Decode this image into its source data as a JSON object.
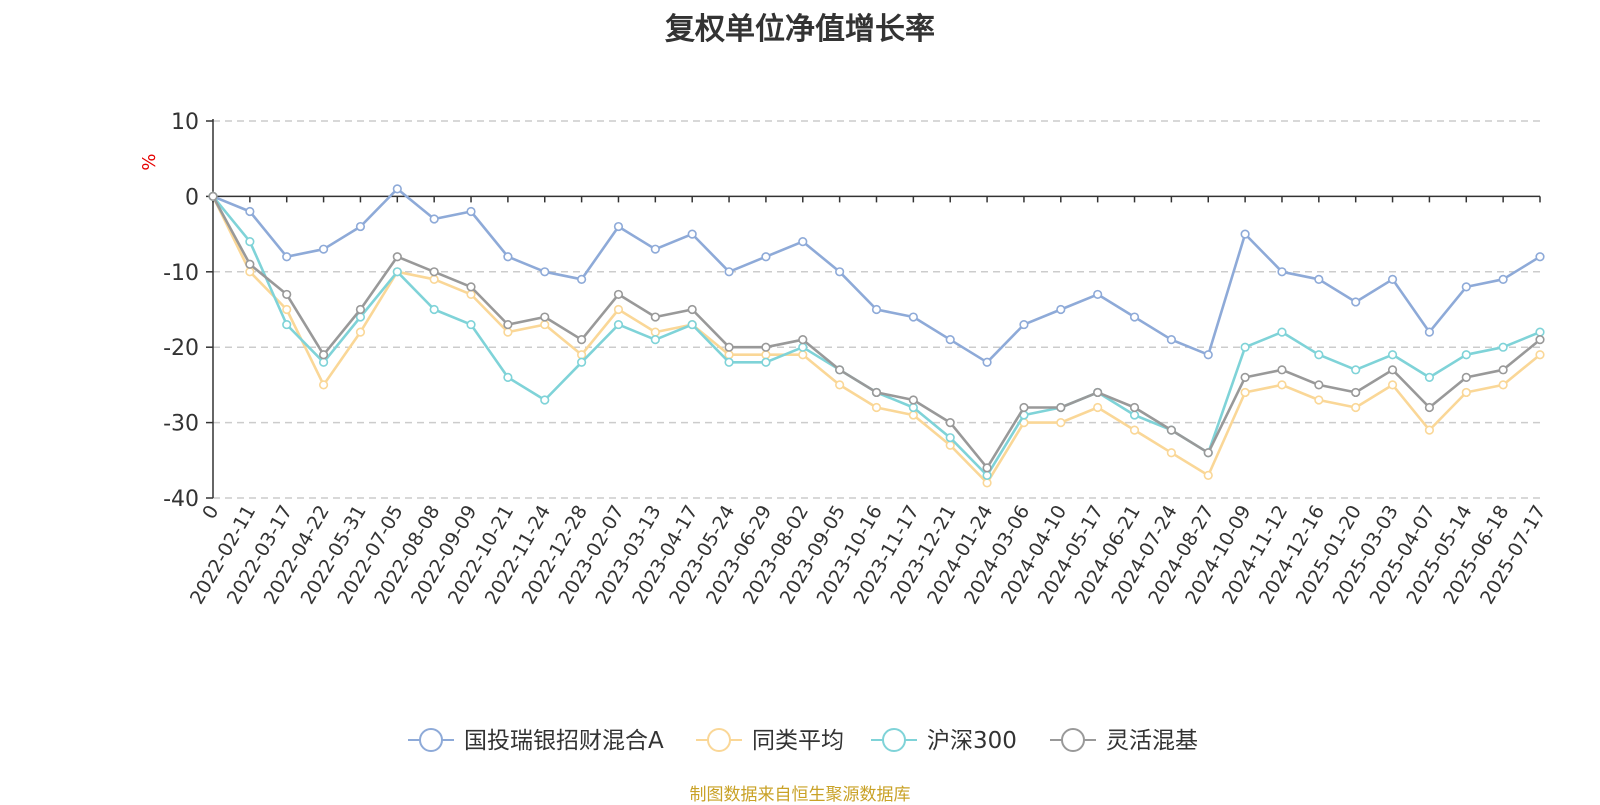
{
  "title": "复权单位净值增长率",
  "source": "制图数据来自恒生聚源数据库",
  "chart_data": {
    "type": "line",
    "title": "复权单位净值增长率",
    "ylabel": "%",
    "ylim": [
      -40,
      10
    ],
    "yticks": [
      10,
      0,
      -10,
      -20,
      -30,
      -40
    ],
    "grid": true,
    "legend_position": "bottom",
    "x_tick_labels": [
      "0",
      "2022-02-11",
      "2022-03-17",
      "2022-04-22",
      "2022-05-31",
      "2022-07-05",
      "2022-08-08",
      "2022-09-09",
      "2022-10-21",
      "2022-11-24",
      "2022-12-28",
      "2023-02-07",
      "2023-03-13",
      "2023-04-17",
      "2023-05-24",
      "2023-06-29",
      "2023-08-02",
      "2023-09-05",
      "2023-10-16",
      "2023-11-17",
      "2023-12-21",
      "2024-01-24",
      "2024-03-06",
      "2024-04-10",
      "2024-05-17",
      "2024-06-21",
      "2024-07-24",
      "2024-08-27",
      "2024-10-09",
      "2024-11-12",
      "2024-12-16",
      "2025-01-20",
      "2025-03-03",
      "2025-04-07",
      "2025-05-14",
      "2025-06-18",
      "2025-07-17"
    ],
    "x": [
      "0",
      "2022-02-11",
      "2022-03-17",
      "2022-04-22",
      "2022-05-31",
      "2022-07-05",
      "2022-08-08",
      "2022-09-09",
      "2022-10-21",
      "2022-11-24",
      "2022-12-28",
      "2023-02-07",
      "2023-03-13",
      "2023-04-17",
      "2023-05-24",
      "2023-06-29",
      "2023-08-02",
      "2023-09-05",
      "2023-10-16",
      "2023-11-17",
      "2023-12-21",
      "2024-01-24",
      "2024-03-06",
      "2024-04-10",
      "2024-05-17",
      "2024-06-21",
      "2024-07-24",
      "2024-08-27",
      "2024-10-09",
      "2024-11-12",
      "2024-12-16",
      "2025-01-20",
      "2025-03-03",
      "2025-04-07",
      "2025-05-14",
      "2025-06-18",
      "2025-07-17"
    ],
    "series": [
      {
        "name": "国投瑞银招财混合A",
        "color": "#8eaad8",
        "values": [
          0,
          -2,
          -8,
          -7,
          -4,
          1,
          -3,
          -2,
          -8,
          -10,
          -11,
          -4,
          -7,
          -5,
          -10,
          -8,
          -6,
          -10,
          -15,
          -16,
          -19,
          -22,
          -17,
          -15,
          -13,
          -16,
          -19,
          -21,
          -5,
          -10,
          -11,
          -14,
          -11,
          -18,
          -12,
          -11,
          -8
        ]
      },
      {
        "name": "同类平均",
        "color": "#fad797",
        "values": [
          0,
          -10,
          -15,
          -25,
          -18,
          -10,
          -11,
          -13,
          -18,
          -17,
          -21,
          -15,
          -18,
          -17,
          -21,
          -21,
          -21,
          -25,
          -28,
          -29,
          -33,
          -38,
          -30,
          -30,
          -28,
          -31,
          -34,
          -37,
          -26,
          -25,
          -27,
          -28,
          -25,
          -31,
          -26,
          -25,
          -21
        ]
      },
      {
        "name": "沪深300",
        "color": "#7fd3d8",
        "values": [
          0,
          -6,
          -17,
          -22,
          -16,
          -10,
          -15,
          -17,
          -24,
          -27,
          -22,
          -17,
          -19,
          -17,
          -22,
          -22,
          -20,
          -23,
          -26,
          -28,
          -32,
          -37,
          -29,
          -28,
          -26,
          -29,
          -31,
          -34,
          -20,
          -18,
          -21,
          -23,
          -21,
          -24,
          -21,
          -20,
          -18
        ]
      },
      {
        "name": "灵活混基",
        "color": "#999999",
        "values": [
          0,
          -9,
          -13,
          -21,
          -15,
          -8,
          -10,
          -12,
          -17,
          -16,
          -19,
          -13,
          -16,
          -15,
          -20,
          -20,
          -19,
          -23,
          -26,
          -27,
          -30,
          -36,
          -28,
          -28,
          -26,
          -28,
          -31,
          -34,
          -24,
          -23,
          -25,
          -26,
          -23,
          -28,
          -24,
          -23,
          -19
        ]
      }
    ]
  }
}
